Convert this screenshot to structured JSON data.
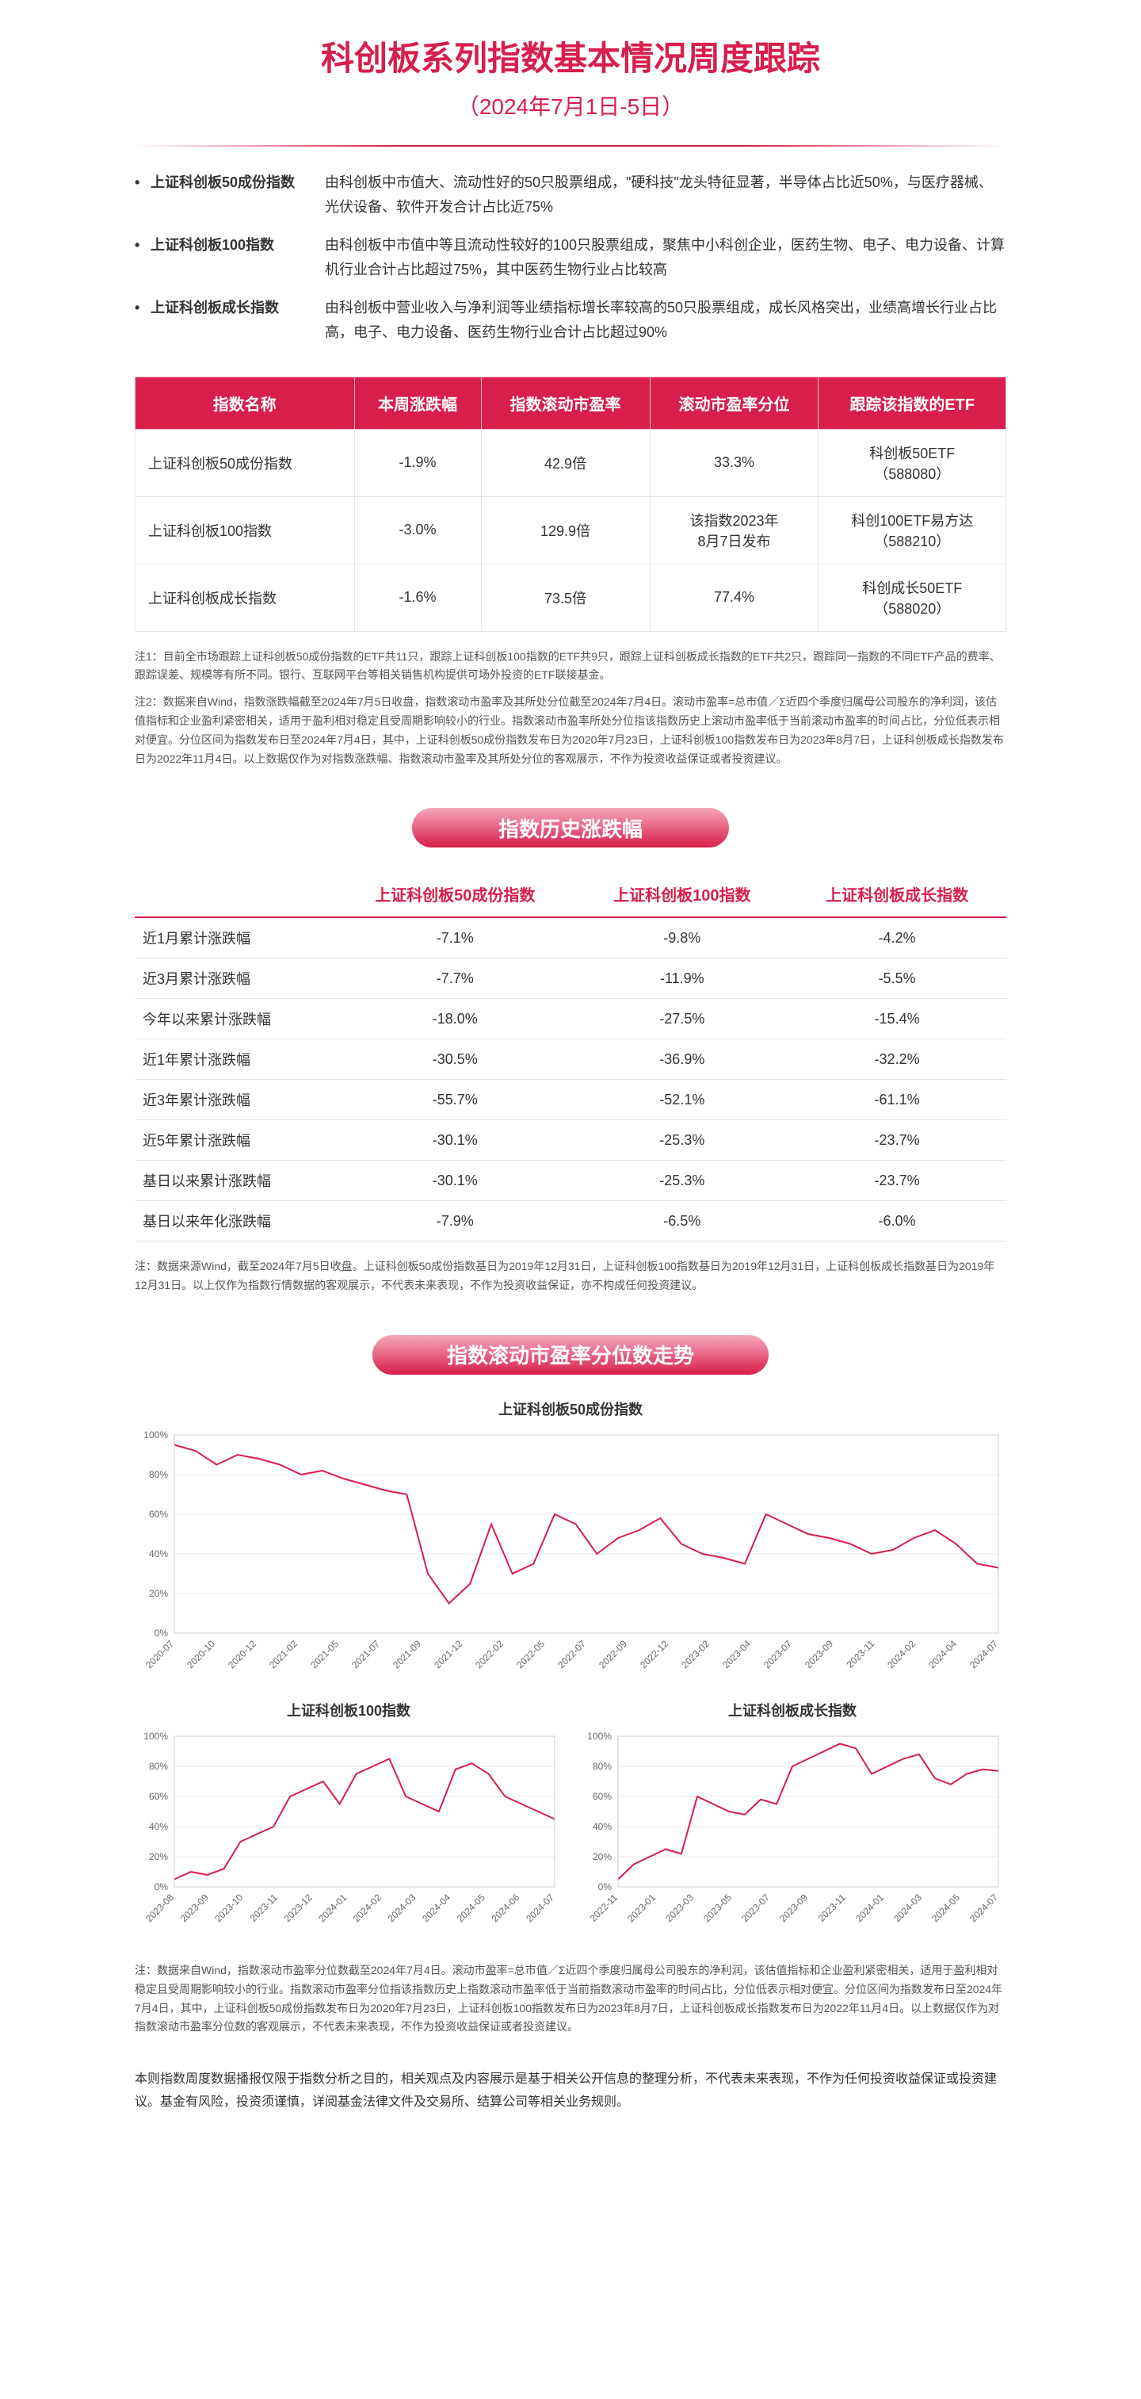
{
  "title": "科创板系列指数基本情况周度跟踪",
  "subtitle": "（2024年7月1日-5日）",
  "descriptions": [
    {
      "label": "上证科创板50成份指数",
      "text": "由科创板中市值大、流动性好的50只股票组成，\"硬科技\"龙头特征显著，半导体占比近50%，与医疗器械、光伏设备、软件开发合计占比近75%"
    },
    {
      "label": "上证科创板100指数",
      "text": "由科创板中市值中等且流动性较好的100只股票组成，聚焦中小科创企业，医药生物、电子、电力设备、计算机行业合计占比超过75%，其中医药生物行业占比较高"
    },
    {
      "label": "上证科创板成长指数",
      "text": "由科创板中营业收入与净利润等业绩指标增长率较高的50只股票组成，成长风格突出，业绩高增长行业占比高，电子、电力设备、医药生物行业合计占比超过90%"
    }
  ],
  "main_table": {
    "headers": [
      "指数名称",
      "本周涨跌幅",
      "指数滚动市盈率",
      "滚动市盈率分位",
      "跟踪该指数的ETF"
    ],
    "rows": [
      [
        "上证科创板50成份指数",
        "-1.9%",
        "42.9倍",
        "33.3%",
        "科创板50ETF\n（588080）"
      ],
      [
        "上证科创板100指数",
        "-3.0%",
        "129.9倍",
        "该指数2023年\n8月7日发布",
        "科创100ETF易方达\n（588210）"
      ],
      [
        "上证科创板成长指数",
        "-1.6%",
        "73.5倍",
        "77.4%",
        "科创成长50ETF\n（588020）"
      ]
    ]
  },
  "note1": "注1：目前全市场跟踪上证科创板50成份指数的ETF共11只，跟踪上证科创板100指数的ETF共9只，跟踪上证科创板成长指数的ETF共2只，跟踪同一指数的不同ETF产品的费率、跟踪误差、规模等有所不同。银行、互联网平台等相关销售机构提供可场外投资的ETF联接基金。",
  "note2": "注2：数据来自Wind，指数涨跌幅截至2024年7月5日收盘，指数滚动市盈率及其所处分位截至2024年7月4日。滚动市盈率=总市值／Σ近四个季度归属母公司股东的净利润，该估值指标和企业盈利紧密相关，适用于盈利相对稳定且受周期影响较小的行业。指数滚动市盈率所处分位指该指数历史上滚动市盈率低于当前滚动市盈率的时间占比，分位低表示相对便宜。分位区间为指数发布日至2024年7月4日，其中，上证科创板50成份指数发布日为2020年7月23日，上证科创板100指数发布日为2023年8月7日，上证科创板成长指数发布日为2022年11月4日。以上数据仅作为对指数涨跌幅、指数滚动市盈率及其所处分位的客观展示，不作为投资收益保证或者投资建议。",
  "hist_section_title": "指数历史涨跌幅",
  "hist_table": {
    "headers": [
      "",
      "上证科创板50成份指数",
      "上证科创板100指数",
      "上证科创板成长指数"
    ],
    "rows": [
      [
        "近1月累计涨跌幅",
        "-7.1%",
        "-9.8%",
        "-4.2%"
      ],
      [
        "近3月累计涨跌幅",
        "-7.7%",
        "-11.9%",
        "-5.5%"
      ],
      [
        "今年以来累计涨跌幅",
        "-18.0%",
        "-27.5%",
        "-15.4%"
      ],
      [
        "近1年累计涨跌幅",
        "-30.5%",
        "-36.9%",
        "-32.2%"
      ],
      [
        "近3年累计涨跌幅",
        "-55.7%",
        "-52.1%",
        "-61.1%"
      ],
      [
        "近5年累计涨跌幅",
        "-30.1%",
        "-25.3%",
        "-23.7%"
      ],
      [
        "基日以来累计涨跌幅",
        "-30.1%",
        "-25.3%",
        "-23.7%"
      ],
      [
        "基日以来年化涨跌幅",
        "-7.9%",
        "-6.5%",
        "-6.0%"
      ]
    ]
  },
  "hist_note": "注：数据来源Wind，截至2024年7月5日收盘。上证科创板50成份指数基日为2019年12月31日，上证科创板100指数基日为2019年12月31日，上证科创板成长指数基日为2019年12月31日。以上仅作为指数行情数据的客观展示，不代表未来表现，不作为投资收益保证，亦不构成任何投资建议。",
  "pe_section_title": "指数滚动市盈率分位数走势",
  "chart1": {
    "title": "上证科创板50成份指数",
    "ylim": [
      0,
      100
    ],
    "ytick_step": 20,
    "xlabels": [
      "2020-07",
      "2020-10",
      "2020-12",
      "2021-02",
      "2021-05",
      "2021-07",
      "2021-09",
      "2021-12",
      "2022-02",
      "2022-05",
      "2022-07",
      "2022-09",
      "2022-12",
      "2023-02",
      "2023-04",
      "2023-07",
      "2023-09",
      "2023-11",
      "2024-02",
      "2024-04",
      "2024-07"
    ],
    "data": [
      95,
      92,
      85,
      90,
      88,
      85,
      80,
      82,
      78,
      75,
      72,
      70,
      30,
      15,
      25,
      55,
      30,
      35,
      60,
      55,
      40,
      48,
      52,
      58,
      45,
      40,
      38,
      35,
      60,
      55,
      50,
      48,
      45,
      40,
      42,
      48,
      52,
      45,
      35,
      33
    ],
    "line_color": "#d81e4a",
    "bg": "#ffffff",
    "grid_color": "#e8e8e8"
  },
  "chart2": {
    "title": "上证科创板100指数",
    "ylim": [
      0,
      100
    ],
    "ytick_step": 20,
    "xlabels": [
      "2023-08",
      "2023-09",
      "2023-10",
      "2023-11",
      "2023-12",
      "2024-01",
      "2024-02",
      "2024-03",
      "2024-04",
      "2024-05",
      "2024-06",
      "2024-07"
    ],
    "data": [
      5,
      10,
      8,
      12,
      30,
      35,
      40,
      60,
      65,
      70,
      55,
      75,
      80,
      85,
      60,
      55,
      50,
      78,
      82,
      75,
      60,
      55,
      50,
      45
    ],
    "line_color": "#d81e4a"
  },
  "chart3": {
    "title": "上证科创板成长指数",
    "ylim": [
      0,
      100
    ],
    "ytick_step": 20,
    "xlabels": [
      "2022-11",
      "2023-01",
      "2023-03",
      "2023-05",
      "2023-07",
      "2023-09",
      "2023-11",
      "2024-01",
      "2024-03",
      "2024-05",
      "2024-07"
    ],
    "data": [
      5,
      15,
      20,
      25,
      22,
      60,
      55,
      50,
      48,
      58,
      55,
      80,
      85,
      90,
      95,
      92,
      75,
      80,
      85,
      88,
      72,
      68,
      75,
      78,
      77
    ],
    "line_color": "#d81e4a"
  },
  "pe_note": "注：数据来自Wind，指数滚动市盈率分位数截至2024年7月4日。滚动市盈率=总市值／Σ近四个季度归属母公司股东的净利润，该估值指标和企业盈利紧密相关，适用于盈利相对稳定且受周期影响较小的行业。指数滚动市盈率分位指该指数历史上指数滚动市盈率低于当前指数滚动市盈率的时间占比，分位低表示相对便宜。分位区间为指数发布日至2024年7月4日，其中，上证科创板50成份指数发布日为2020年7月23日，上证科创板100指数发布日为2023年8月7日，上证科创板成长指数发布日为2022年11月4日。以上数据仅作为对指数滚动市盈率分位数的客观展示，不代表未来表现，不作为投资收益保证或者投资建议。",
  "disclaimer": "本则指数周度数据播报仅限于指数分析之目的，相关观点及内容展示是基于相关公开信息的整理分析，不代表未来表现，不作为任何投资收益保证或投资建议。基金有风险，投资须谨慎，详阅基金法律文件及交易所、结算公司等相关业务规则。"
}
